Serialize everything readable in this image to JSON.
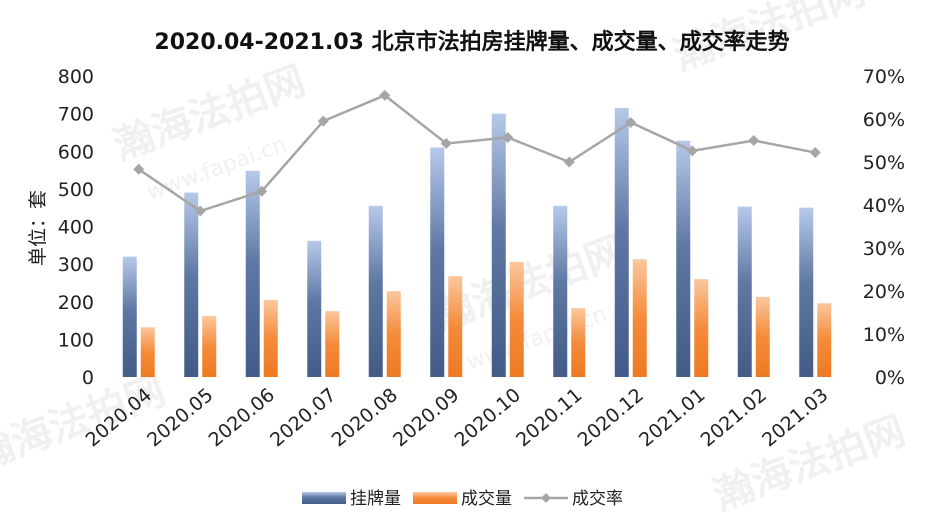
{
  "watermark": {
    "name": "瀚海法拍网",
    "url": "www.fapai.cn"
  },
  "chart_data": {
    "type": "bar",
    "title": "2020.04-2021.03 北京市法拍房挂牌量、成交量、成交率走势",
    "ylabel": "单位：套",
    "xlabel": "",
    "categories": [
      "2020.04",
      "2020.05",
      "2020.06",
      "2020.07",
      "2020.08",
      "2020.09",
      "2020.10",
      "2020.11",
      "2020.12",
      "2021.01",
      "2021.02",
      "2021.03"
    ],
    "ylim": [
      0,
      800
    ],
    "y_ticks": [
      "0",
      "100",
      "200",
      "300",
      "400",
      "500",
      "600",
      "700",
      "800"
    ],
    "y2lim": [
      0,
      0.7
    ],
    "y2_ticks": [
      "0%",
      "10%",
      "20%",
      "30%",
      "40%",
      "50%",
      "60%",
      "70%"
    ],
    "grid": false,
    "legend_position": "bottom",
    "series": [
      {
        "name": "挂牌量",
        "type": "bar",
        "axis": "left",
        "color": "#4a6491",
        "values": [
          320,
          490,
          548,
          362,
          455,
          610,
          700,
          455,
          715,
          628,
          453,
          450
        ]
      },
      {
        "name": "成交量",
        "type": "bar",
        "axis": "left",
        "color": "#f0812e",
        "values": [
          132,
          162,
          205,
          175,
          228,
          268,
          306,
          183,
          313,
          260,
          213,
          196
        ]
      },
      {
        "name": "成交率",
        "type": "line",
        "axis": "right",
        "color": "#a6a6a6",
        "values": [
          0.483,
          0.386,
          0.432,
          0.595,
          0.655,
          0.543,
          0.557,
          0.5,
          0.592,
          0.526,
          0.55,
          0.522
        ]
      }
    ]
  }
}
